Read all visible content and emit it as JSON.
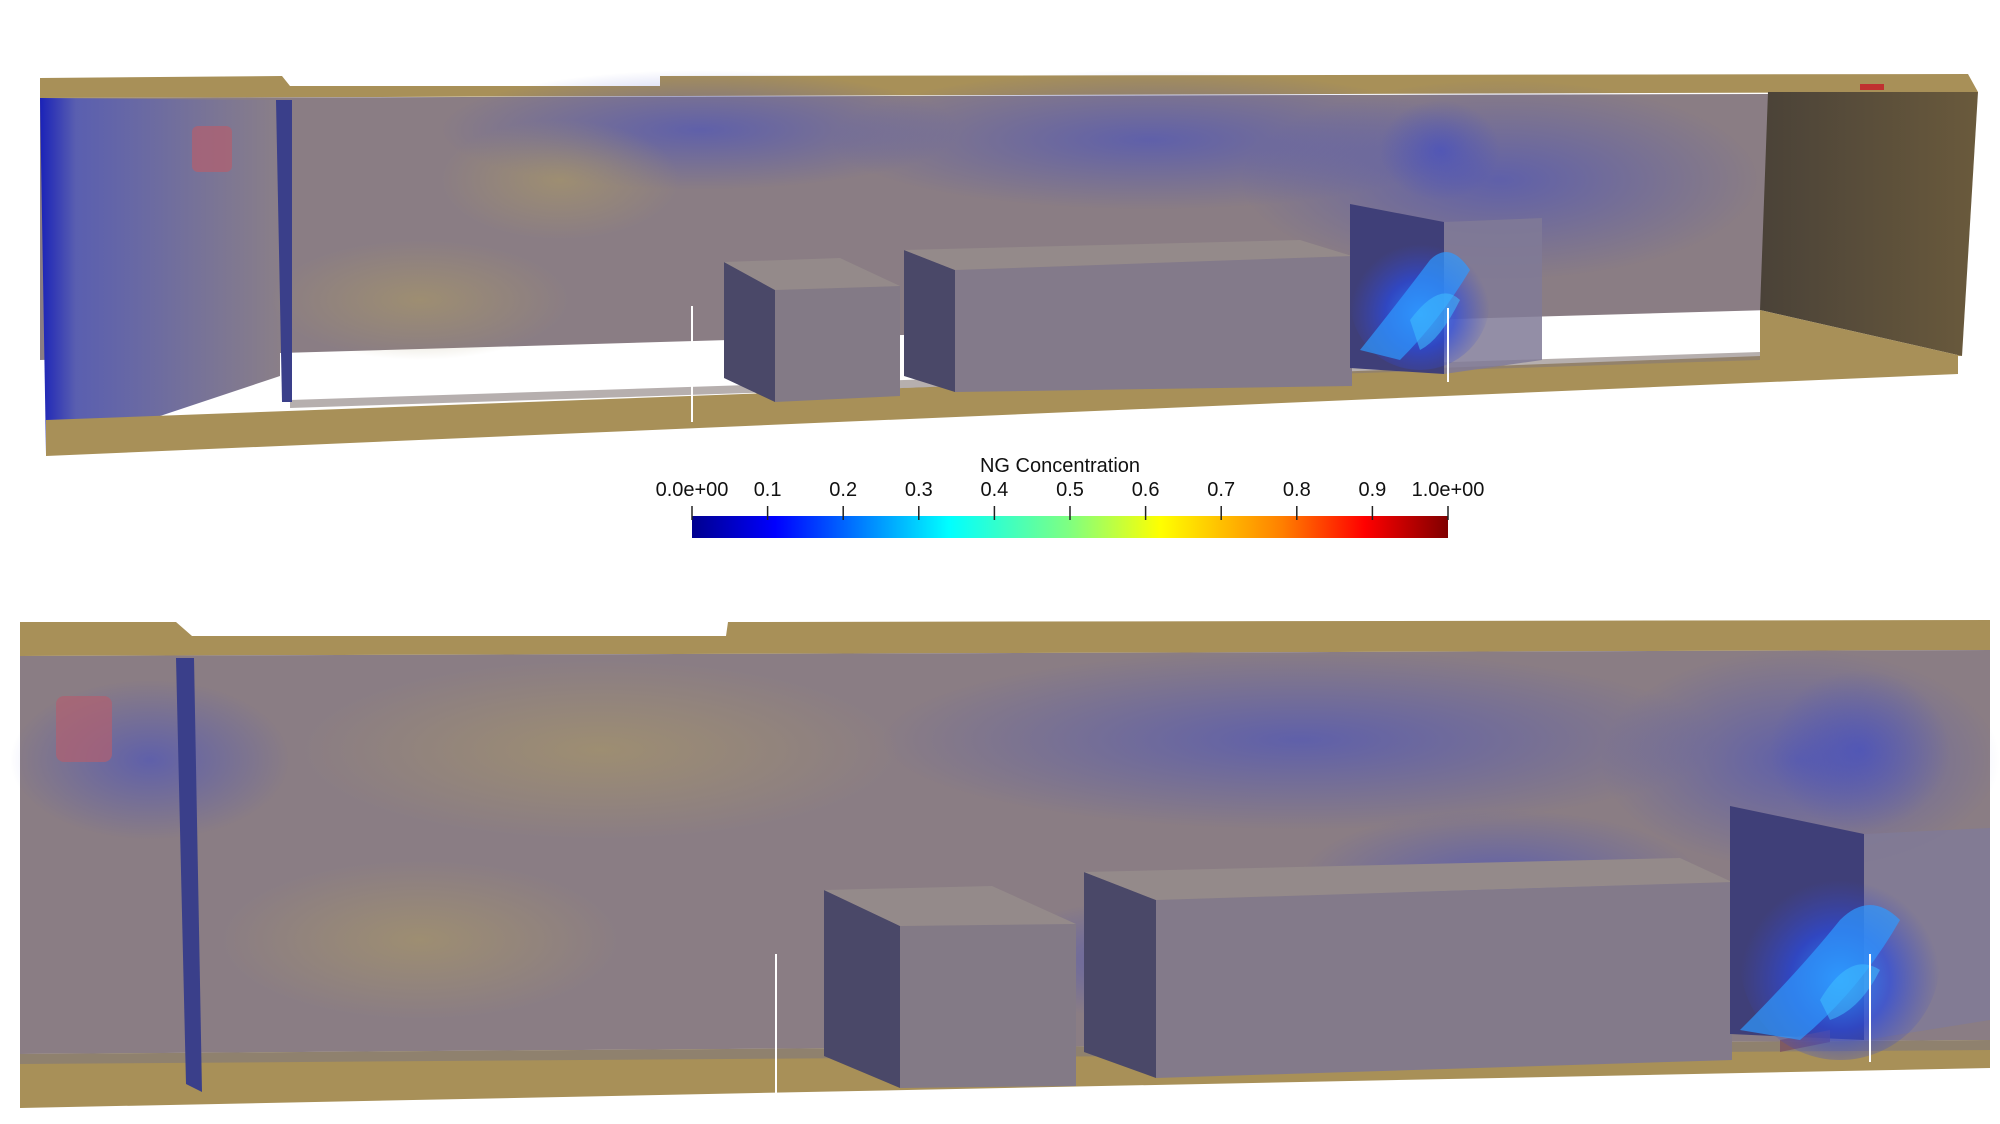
{
  "colorbar": {
    "title": "NG Concentration",
    "ticks": [
      "0.0e+00",
      "0.1",
      "0.2",
      "0.3",
      "0.4",
      "0.5",
      "0.6",
      "0.7",
      "0.8",
      "0.9",
      "1.0e+00"
    ],
    "colormap": [
      "#00008f",
      "#0000ff",
      "#0080ff",
      "#00ffff",
      "#80ff80",
      "#ffff00",
      "#ff8000",
      "#ff0000",
      "#800000"
    ]
  },
  "scene": {
    "wall_color": "#a89058",
    "interior_color": "#8a7a82",
    "gas_color": "#3a46c8",
    "box_dark_color": "#4a4868",
    "leak_marker_color": "#b06070"
  }
}
